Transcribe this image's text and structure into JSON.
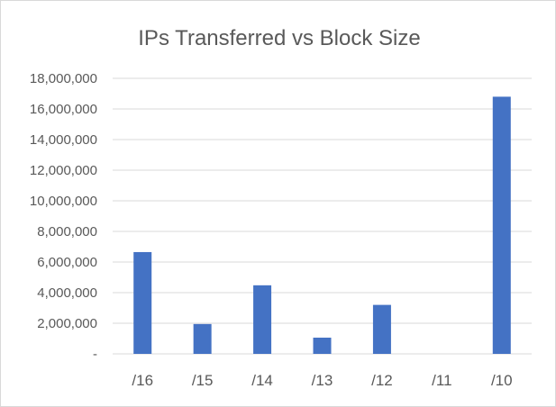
{
  "chart_data": {
    "type": "bar",
    "title": "IPs Transferred vs Block Size",
    "xlabel": "",
    "ylabel": "",
    "categories": [
      "/16",
      "/15",
      "/14",
      "/13",
      "/12",
      "/11",
      "/10"
    ],
    "values": [
      6650000,
      1950000,
      4480000,
      1060000,
      3200000,
      0,
      16800000
    ],
    "ylim": [
      0,
      18000000
    ],
    "y_ticks": [
      0,
      2000000,
      4000000,
      6000000,
      8000000,
      10000000,
      12000000,
      14000000,
      16000000,
      18000000
    ],
    "y_tick_labels": [
      "-",
      "2,000,000",
      "4,000,000",
      "6,000,000",
      "8,000,000",
      "10,000,000",
      "12,000,000",
      "14,000,000",
      "16,000,000",
      "18,000,000"
    ],
    "grid": true,
    "legend": "none",
    "bar_color": "#4472c4",
    "grid_color": "#d9d9d9"
  }
}
